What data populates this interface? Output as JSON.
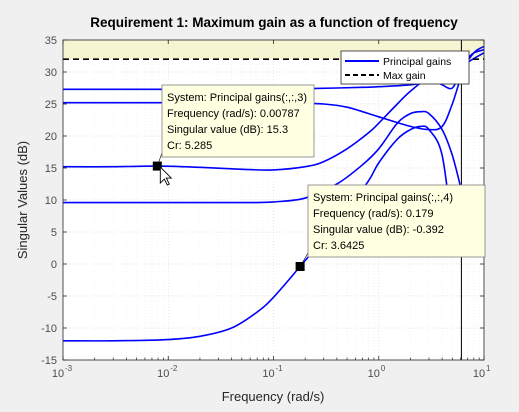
{
  "chart_data": {
    "type": "line",
    "title": "Requirement 1: Maximum gain as a function of frequency",
    "xlabel": "Frequency (rad/s)",
    "ylabel": "Singular Values (dB)",
    "xscale": "log",
    "xlim": [
      0.001,
      10
    ],
    "ylim": [
      -15,
      35
    ],
    "grid": true,
    "xtick_labels": [
      {
        "base": "10",
        "exp": "-3",
        "value": 0.001
      },
      {
        "base": "10",
        "exp": "-2",
        "value": 0.01
      },
      {
        "base": "10",
        "exp": "-1",
        "value": 0.1
      },
      {
        "base": "10",
        "exp": "0",
        "value": 1
      },
      {
        "base": "10",
        "exp": "1",
        "value": 10
      }
    ],
    "yticks": [
      -15,
      -10,
      -5,
      0,
      5,
      10,
      15,
      20,
      25,
      30,
      35
    ],
    "legend_position": "top-right",
    "legend": [
      {
        "label": "Principal gains",
        "color": "#0000ff",
        "style": "solid"
      },
      {
        "label": "Max gain",
        "color": "#000000",
        "style": "dashed"
      }
    ],
    "max_gain_db": 32,
    "shaded_region": {
      "y_from": 32,
      "y_to": 35,
      "color": "#f5f5d2"
    },
    "vertical_line_x": 6.1,
    "series": [
      {
        "name": "Principal gains",
        "x": [
          0.001,
          0.003,
          0.01,
          0.03,
          0.1,
          0.2,
          0.4,
          0.7,
          1,
          2,
          3,
          5,
          7,
          10
        ],
        "y": [
          27.3,
          27.3,
          27.3,
          27.3,
          27.3,
          27.4,
          27.5,
          27.6,
          27.7,
          28,
          28.5,
          29.5,
          31.5,
          33
        ]
      },
      {
        "name": "Principal gains",
        "x": [
          0.001,
          0.003,
          0.01,
          0.03,
          0.1,
          0.2,
          0.3,
          0.5,
          1,
          2,
          3,
          4,
          5,
          7,
          10
        ],
        "y": [
          25.2,
          25.2,
          25.2,
          25.2,
          25.2,
          25.1,
          25,
          24.5,
          23,
          21.5,
          21,
          21.5,
          25,
          32,
          33.5
        ]
      },
      {
        "name": "Principal gains",
        "x": [
          0.001,
          0.003,
          0.00787,
          0.02,
          0.05,
          0.1,
          0.2,
          0.3,
          0.5,
          0.8,
          1,
          1.5,
          2,
          3,
          4,
          5,
          6,
          8,
          10
        ],
        "y": [
          15.2,
          15.2,
          15.3,
          15.1,
          14.8,
          14.7,
          15.2,
          16,
          18,
          20.5,
          22,
          25,
          27,
          29,
          28,
          27.5,
          30,
          33,
          34
        ]
      },
      {
        "name": "Principal gains",
        "x": [
          0.001,
          0.003,
          0.01,
          0.03,
          0.06,
          0.1,
          0.2,
          0.4,
          0.7,
          1,
          1.5,
          2,
          2.5,
          3,
          4,
          5,
          6
        ],
        "y": [
          9.6,
          9.6,
          9.6,
          9.6,
          9.6,
          9.7,
          10.3,
          12.5,
          15.5,
          18,
          22,
          23.5,
          23.8,
          23.5,
          21,
          17,
          12
        ]
      },
      {
        "name": "Principal gains",
        "x": [
          0.001,
          0.003,
          0.01,
          0.02,
          0.04,
          0.07,
          0.1,
          0.179,
          0.3,
          0.5,
          0.8,
          1,
          1.5,
          2,
          2.5,
          3,
          4,
          5
        ],
        "y": [
          -12,
          -12,
          -11.8,
          -11.3,
          -10,
          -7.5,
          -5.2,
          -0.392,
          4,
          8.5,
          13,
          15.8,
          19.5,
          21,
          21.5,
          21,
          17,
          5
        ]
      }
    ],
    "datatips": [
      {
        "x": 0.00787,
        "y": 15.3,
        "lines": [
          "System: Principal gains(:,:,3)",
          "Frequency (rad/s): 0.00787",
          "Singular value (dB): 15.3",
          "Cr: 5.285"
        ]
      },
      {
        "x": 0.179,
        "y": -0.392,
        "lines": [
          "System: Principal gains(:,:,4)",
          "Frequency (rad/s): 0.179",
          "Singular value (dB): -0.392",
          "Cr: 3.6425"
        ]
      }
    ]
  },
  "colors": {
    "series": "#0000ff",
    "max_gain": "#000000",
    "figure_background": "#f0f0f0",
    "axes_background": "#ffffff",
    "tooltip_background": "#ffffe1",
    "shaded": "#f5f5d2"
  }
}
